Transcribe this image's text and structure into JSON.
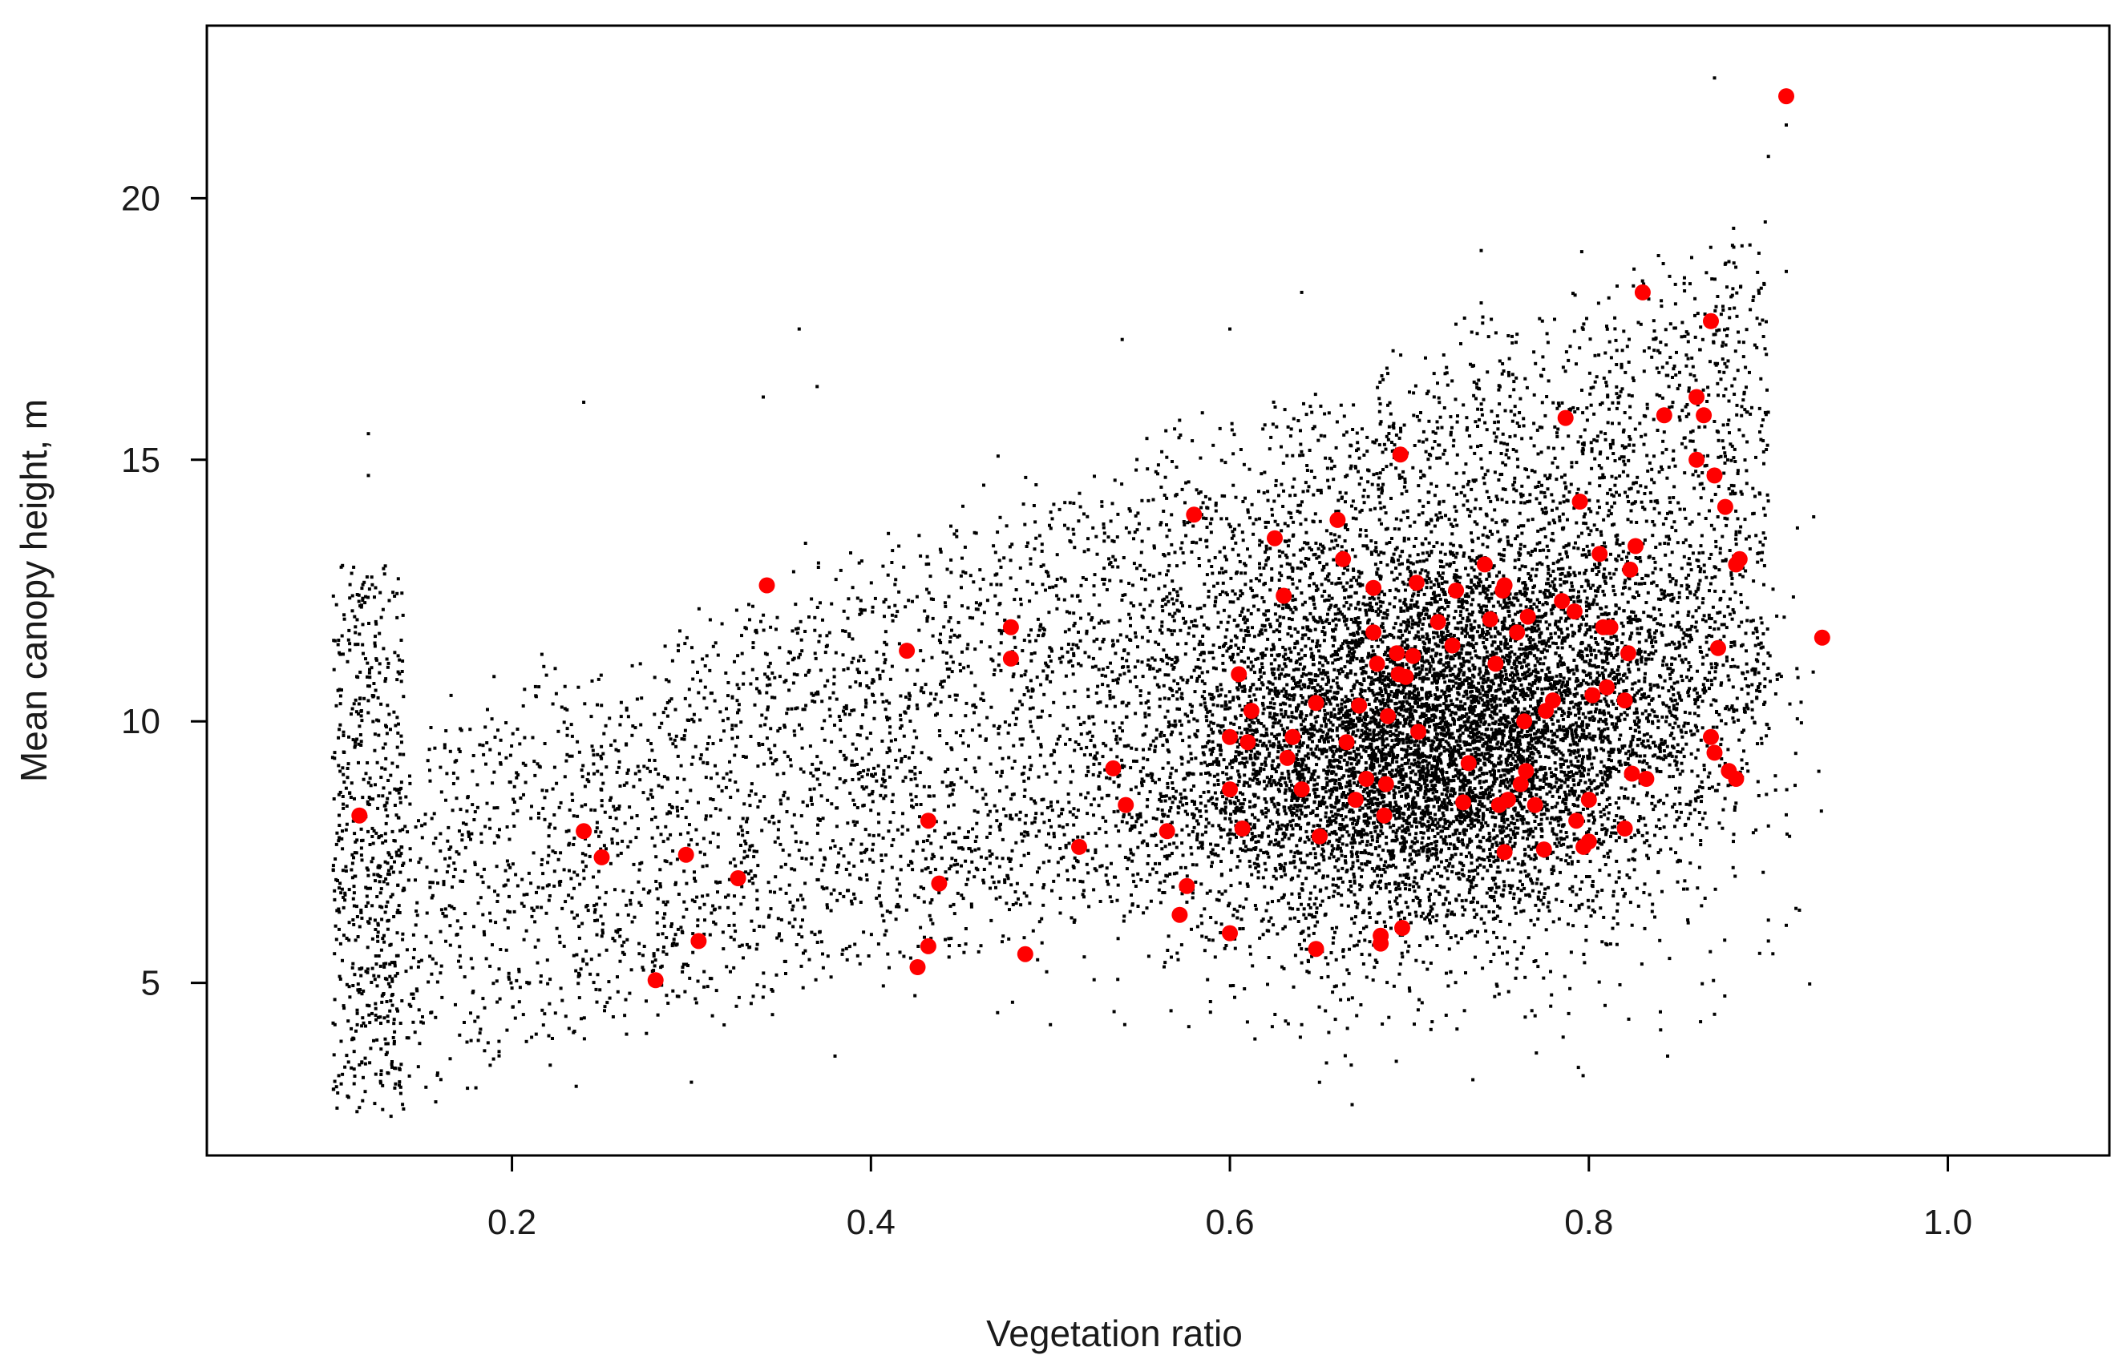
{
  "chart_data": {
    "type": "scatter",
    "title": "",
    "xlabel": "Vegetation ratio",
    "ylabel": "Mean canopy height, m",
    "xlim": [
      0.03,
      1.09
    ],
    "ylim": [
      1.7,
      23.3
    ],
    "x_ticks": [
      {
        "value": 0.2,
        "label": "0.2"
      },
      {
        "value": 0.4,
        "label": "0.4"
      },
      {
        "value": 0.6,
        "label": "0.6"
      },
      {
        "value": 0.8,
        "label": "0.8"
      },
      {
        "value": 1.0,
        "label": "1.0"
      }
    ],
    "y_ticks": [
      {
        "value": 5,
        "label": "5"
      },
      {
        "value": 10,
        "label": "10"
      },
      {
        "value": 15,
        "label": "15"
      },
      {
        "value": 20,
        "label": "20"
      }
    ],
    "grid": false,
    "legend": "none",
    "series": [
      {
        "style": "small-points",
        "color": "#000000",
        "approx_count": 14000,
        "x_range": [
          0.1,
          0.93
        ],
        "y_range": [
          2.4,
          22.3
        ],
        "center": [
          0.72,
          9.6
        ],
        "note_values": "dense background cloud; representative sample of points",
        "points": [
          [
            0.12,
            15.5
          ],
          [
            0.12,
            14.7
          ],
          [
            0.24,
            16.1
          ],
          [
            0.34,
            16.2
          ],
          [
            0.36,
            17.5
          ],
          [
            0.37,
            16.4
          ],
          [
            0.54,
            17.3
          ],
          [
            0.6,
            17.5
          ],
          [
            0.64,
            18.2
          ],
          [
            0.74,
            19.0
          ],
          [
            0.74,
            18.0
          ],
          [
            0.76,
            17.4
          ],
          [
            0.87,
            22.3
          ],
          [
            0.91,
            21.4
          ],
          [
            0.9,
            20.8
          ],
          [
            0.88,
            19.1
          ],
          [
            0.91,
            18.6
          ],
          [
            0.94,
            14.8
          ],
          [
            0.9,
            8.0
          ],
          [
            0.9,
            6.2
          ],
          [
            0.91,
            6.1
          ],
          [
            0.9,
            5.8
          ],
          [
            0.87,
            4.4
          ],
          [
            0.84,
            4.1
          ],
          [
            0.2,
            4.9
          ],
          [
            0.3,
            3.1
          ],
          [
            0.38,
            3.6
          ],
          [
            0.5,
            4.2
          ],
          [
            0.64,
            4.2
          ],
          [
            0.7,
            4.9
          ]
        ]
      },
      {
        "style": "large-points",
        "color": "#ff0000",
        "points": [
          [
            0.115,
            8.2
          ],
          [
            0.24,
            7.9
          ],
          [
            0.25,
            7.4
          ],
          [
            0.28,
            5.05
          ],
          [
            0.297,
            7.45
          ],
          [
            0.304,
            5.8
          ],
          [
            0.326,
            7.0
          ],
          [
            0.342,
            12.6
          ],
          [
            0.42,
            11.35
          ],
          [
            0.426,
            5.3
          ],
          [
            0.432,
            5.7
          ],
          [
            0.432,
            8.1
          ],
          [
            0.438,
            6.9
          ],
          [
            0.478,
            11.8
          ],
          [
            0.478,
            11.2
          ],
          [
            0.486,
            5.55
          ],
          [
            0.516,
            7.6
          ],
          [
            0.535,
            9.1
          ],
          [
            0.542,
            8.4
          ],
          [
            0.565,
            7.9
          ],
          [
            0.572,
            6.3
          ],
          [
            0.576,
            6.85
          ],
          [
            0.58,
            13.95
          ],
          [
            0.6,
            9.7
          ],
          [
            0.6,
            8.7
          ],
          [
            0.6,
            5.95
          ],
          [
            0.605,
            10.9
          ],
          [
            0.607,
            7.95
          ],
          [
            0.61,
            9.6
          ],
          [
            0.612,
            10.2
          ],
          [
            0.625,
            13.5
          ],
          [
            0.63,
            12.4
          ],
          [
            0.632,
            9.3
          ],
          [
            0.635,
            9.7
          ],
          [
            0.64,
            8.7
          ],
          [
            0.648,
            10.35
          ],
          [
            0.648,
            5.65
          ],
          [
            0.65,
            7.8
          ],
          [
            0.66,
            13.85
          ],
          [
            0.663,
            13.1
          ],
          [
            0.665,
            9.6
          ],
          [
            0.67,
            8.5
          ],
          [
            0.672,
            10.3
          ],
          [
            0.676,
            8.9
          ],
          [
            0.68,
            11.7
          ],
          [
            0.68,
            12.55
          ],
          [
            0.682,
            11.1
          ],
          [
            0.684,
            5.9
          ],
          [
            0.684,
            5.75
          ],
          [
            0.686,
            8.2
          ],
          [
            0.687,
            8.8
          ],
          [
            0.688,
            10.1
          ],
          [
            0.693,
            11.3
          ],
          [
            0.694,
            10.9
          ],
          [
            0.695,
            15.1
          ],
          [
            0.696,
            6.05
          ],
          [
            0.698,
            10.85
          ],
          [
            0.702,
            11.25
          ],
          [
            0.704,
            12.65
          ],
          [
            0.705,
            9.8
          ],
          [
            0.716,
            11.9
          ],
          [
            0.724,
            11.45
          ],
          [
            0.726,
            12.5
          ],
          [
            0.73,
            8.45
          ],
          [
            0.733,
            9.2
          ],
          [
            0.742,
            13.0
          ],
          [
            0.745,
            11.95
          ],
          [
            0.748,
            11.1
          ],
          [
            0.75,
            8.4
          ],
          [
            0.752,
            12.5
          ],
          [
            0.753,
            12.6
          ],
          [
            0.753,
            7.5
          ],
          [
            0.755,
            8.5
          ],
          [
            0.76,
            11.7
          ],
          [
            0.762,
            8.8
          ],
          [
            0.764,
            10.0
          ],
          [
            0.765,
            9.05
          ],
          [
            0.766,
            12.0
          ],
          [
            0.77,
            8.4
          ],
          [
            0.775,
            7.55
          ],
          [
            0.776,
            10.2
          ],
          [
            0.78,
            10.4
          ],
          [
            0.785,
            12.3
          ],
          [
            0.787,
            15.8
          ],
          [
            0.792,
            12.1
          ],
          [
            0.793,
            8.1
          ],
          [
            0.795,
            14.2
          ],
          [
            0.797,
            7.6
          ],
          [
            0.8,
            8.5
          ],
          [
            0.8,
            7.7
          ],
          [
            0.802,
            10.5
          ],
          [
            0.806,
            13.2
          ],
          [
            0.808,
            11.8
          ],
          [
            0.81,
            10.65
          ],
          [
            0.812,
            11.8
          ],
          [
            0.82,
            10.4
          ],
          [
            0.822,
            11.3
          ],
          [
            0.82,
            7.95
          ],
          [
            0.823,
            12.9
          ],
          [
            0.824,
            9.0
          ],
          [
            0.826,
            13.35
          ],
          [
            0.83,
            18.2
          ],
          [
            0.832,
            8.9
          ],
          [
            0.842,
            15.85
          ],
          [
            0.86,
            16.2
          ],
          [
            0.86,
            15.0
          ],
          [
            0.864,
            15.85
          ],
          [
            0.868,
            17.65
          ],
          [
            0.868,
            9.7
          ],
          [
            0.87,
            9.4
          ],
          [
            0.87,
            14.7
          ],
          [
            0.872,
            11.4
          ],
          [
            0.876,
            14.1
          ],
          [
            0.878,
            9.05
          ],
          [
            0.882,
            8.9
          ],
          [
            0.882,
            13.0
          ],
          [
            0.884,
            13.1
          ],
          [
            0.91,
            21.95
          ],
          [
            0.93,
            11.6
          ]
        ]
      }
    ]
  }
}
